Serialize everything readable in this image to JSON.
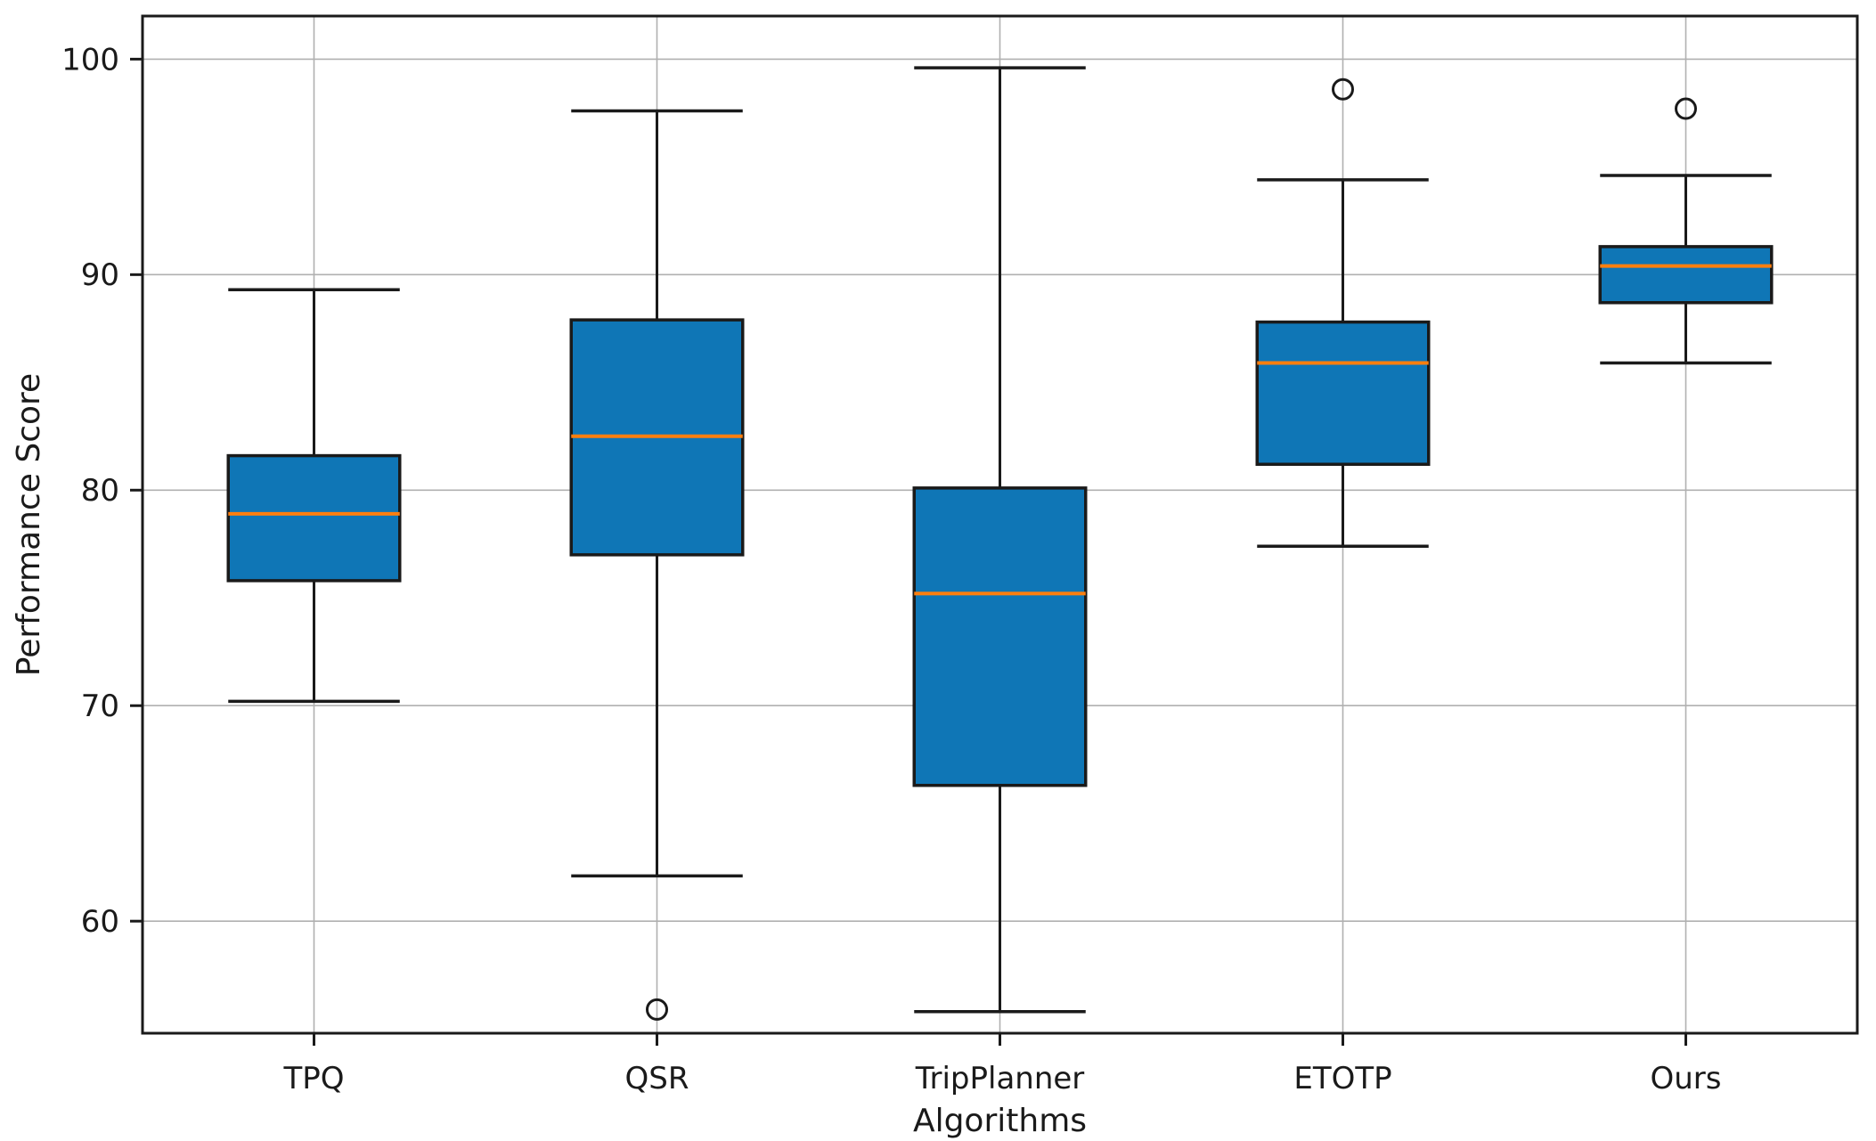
{
  "figure": {
    "xlabel": "Algorithms",
    "ylabel": "Performance Score"
  },
  "colors": {
    "background": "#ffffff",
    "box_fill": "#0f76b6",
    "median": "#ff7f0e",
    "line": "#1a1a1a",
    "grid": "#b0b0b0"
  },
  "chart_data": {
    "type": "boxplot",
    "title": "",
    "xlabel": "Algorithms",
    "ylabel": "Performance Score",
    "ylim": [
      54.8,
      102.0
    ],
    "yticks": [
      60,
      70,
      80,
      90,
      100
    ],
    "grid": true,
    "legend": false,
    "categories": [
      "TPQ",
      "QSR",
      "TripPlanner",
      "ETOTP",
      "Ours"
    ],
    "series": [
      {
        "name": "TPQ",
        "whisker_low": 70.2,
        "q1": 75.8,
        "median": 78.9,
        "q3": 81.6,
        "whisker_high": 89.3,
        "outliers": []
      },
      {
        "name": "QSR",
        "whisker_low": 62.1,
        "q1": 77.0,
        "median": 82.5,
        "q3": 87.9,
        "whisker_high": 97.6,
        "outliers": [
          55.9
        ]
      },
      {
        "name": "TripPlanner",
        "whisker_low": 55.8,
        "q1": 66.3,
        "median": 75.2,
        "q3": 80.1,
        "whisker_high": 99.6,
        "outliers": []
      },
      {
        "name": "ETOTP",
        "whisker_low": 77.4,
        "q1": 81.2,
        "median": 85.9,
        "q3": 87.8,
        "whisker_high": 94.4,
        "outliers": [
          98.6
        ]
      },
      {
        "name": "Ours",
        "whisker_low": 85.9,
        "q1": 88.7,
        "median": 90.4,
        "q3": 91.3,
        "whisker_high": 94.6,
        "outliers": [
          97.7
        ]
      }
    ]
  }
}
